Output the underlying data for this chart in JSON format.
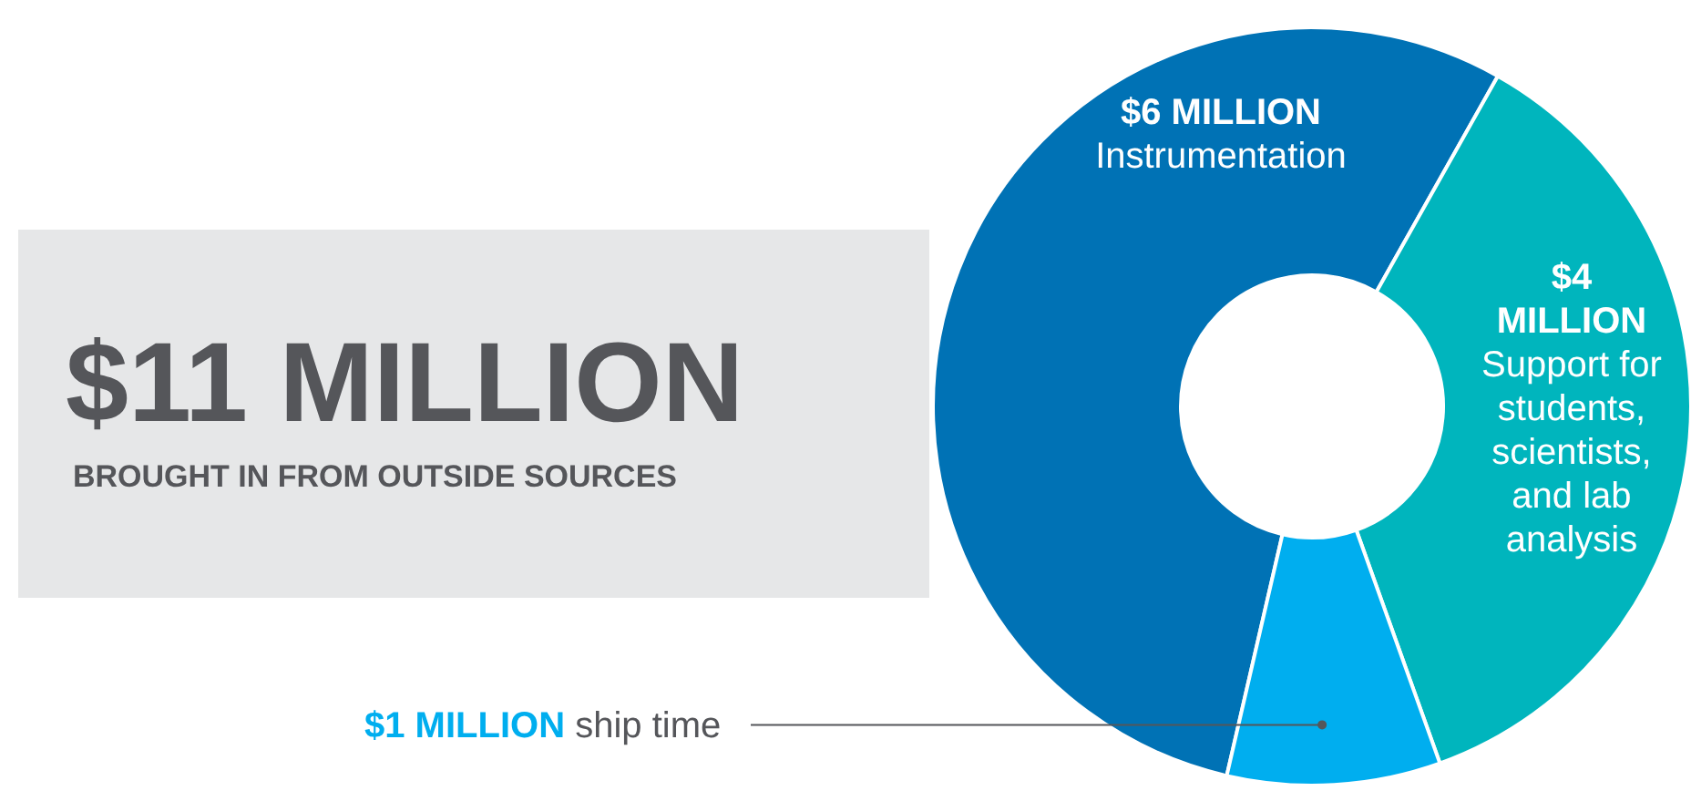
{
  "chart_data": {
    "type": "donut",
    "title": "$11 MILLION",
    "subtitle": "BROUGHT IN FROM OUTSIDE SOURCES",
    "categories": [
      "Instrumentation",
      "Support for students, scientists, and lab analysis",
      "ship time"
    ],
    "values": [
      6,
      4,
      1
    ],
    "colors": [
      "#0072b5",
      "#00b5bd",
      "#00aeef"
    ],
    "value_labels": [
      "$6 MILLION",
      "$4 MILLION",
      "$1 MILLION"
    ]
  }
}
